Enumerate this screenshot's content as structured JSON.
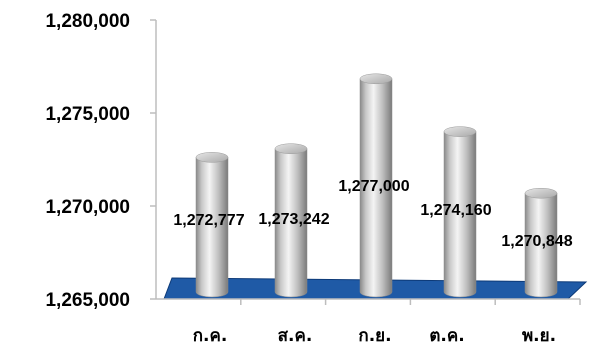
{
  "chart_data": {
    "type": "bar",
    "style": "3d-cylinder",
    "categories": [
      "ก.ค.",
      "ส.ค.",
      "ก.ย.",
      "ต.ค.",
      "พ.ย."
    ],
    "series": [
      {
        "values": [
          1272777,
          1273242,
          1277000,
          1274160,
          1270848
        ]
      }
    ],
    "data_labels": [
      "1,272,777",
      "1,273,242",
      "1,277,000",
      "1,274,160",
      "1,270,848"
    ],
    "ylim": [
      1265000,
      1280000
    ],
    "ytick_values": [
      1265000,
      1270000,
      1275000,
      1280000
    ],
    "ytick_labels": [
      "1,265,000",
      "1,270,000",
      "1,275,000",
      "1,280,000"
    ],
    "grid": false,
    "legend": "none",
    "colors": {
      "floor": "#1f5aa6",
      "floor_edge": "#0d3a78",
      "cylinder_light": "#f2f2f2",
      "cylinder_mid": "#c4c4c4",
      "cylinder_dark": "#7f7f7f",
      "axis": "#bdbdbd"
    }
  }
}
